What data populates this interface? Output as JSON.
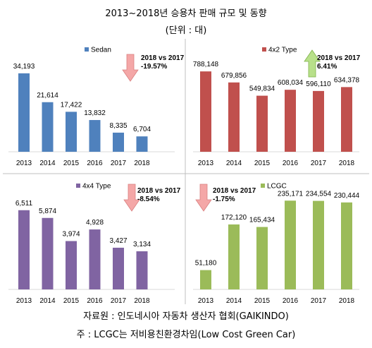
{
  "header": {
    "title": "2013~2018년 승용차 판매 규모 및 동향",
    "unit": "(단위 : 대)"
  },
  "footer": {
    "source": "자료원 : 인도네시아 자동차 생산자 협회(GAIKINDO)",
    "note": "주 : LCGC는 저비용친환경차임(Low Cost Green Car)"
  },
  "chart_data": [
    {
      "type": "bar",
      "categories": [
        "2013",
        "2014",
        "2015",
        "2016",
        "2017",
        "2018"
      ],
      "series": [
        {
          "name": "Sedan",
          "values": [
            34193,
            21614,
            17422,
            13832,
            8335,
            6704
          ],
          "labels": [
            "34,193",
            "21,614",
            "17,422",
            "13,832",
            "8,335",
            "6,704"
          ]
        }
      ],
      "ylim": [
        0,
        40000
      ],
      "color": "#4f81bd",
      "legend": "top-left",
      "annotation": {
        "line1": "2018 vs 2017",
        "line2": "-19.57%",
        "arrow": "down",
        "arrow_color": "#f4a7a7"
      }
    },
    {
      "type": "bar",
      "categories": [
        "2013",
        "2014",
        "2015",
        "2016",
        "2017",
        "2018"
      ],
      "series": [
        {
          "name": "4x2 Type",
          "values": [
            788148,
            679856,
            549834,
            608034,
            596110,
            634378
          ],
          "labels": [
            "788,148",
            "679,856",
            "549,834",
            "608,034",
            "596,110",
            "634,378"
          ]
        }
      ],
      "ylim": [
        0,
        900000
      ],
      "color": "#c0504d",
      "legend": "top-left",
      "annotation": {
        "line1": "2018 vs 2017",
        "line2": "6.41%",
        "arrow": "up",
        "arrow_color": "#b8e08a"
      }
    },
    {
      "type": "bar",
      "categories": [
        "2013",
        "2014",
        "2015",
        "2016",
        "2017",
        "2018"
      ],
      "series": [
        {
          "name": "4x4 Type",
          "values": [
            6511,
            5874,
            3974,
            4928,
            3427,
            3134
          ],
          "labels": [
            "6,511",
            "5,874",
            "3,974",
            "4,928",
            "3,427",
            "3,134"
          ]
        }
      ],
      "ylim": [
        0,
        7600
      ],
      "color": "#8064a2",
      "legend": "top-center",
      "annotation": {
        "line1": "2018 vs 2017",
        "line2": "-8.54%",
        "arrow": "down",
        "arrow_color": "#f4a7a7"
      }
    },
    {
      "type": "bar",
      "categories": [
        "2013",
        "2014",
        "2015",
        "2016",
        "2017",
        "2018"
      ],
      "series": [
        {
          "name": "LCGC",
          "values": [
            51180,
            172120,
            165434,
            235171,
            234554,
            230444
          ],
          "labels": [
            "51,180",
            "172,120",
            "165,434",
            "235,171",
            "234,554",
            "230,444"
          ]
        }
      ],
      "ylim": [
        0,
        245000
      ],
      "color": "#9bbb59",
      "legend": "top-left",
      "annotation": {
        "line1": "2018 vs 2017",
        "line2": "-1.75%",
        "arrow": "down",
        "arrow_color": "#f4a7a7"
      }
    }
  ]
}
